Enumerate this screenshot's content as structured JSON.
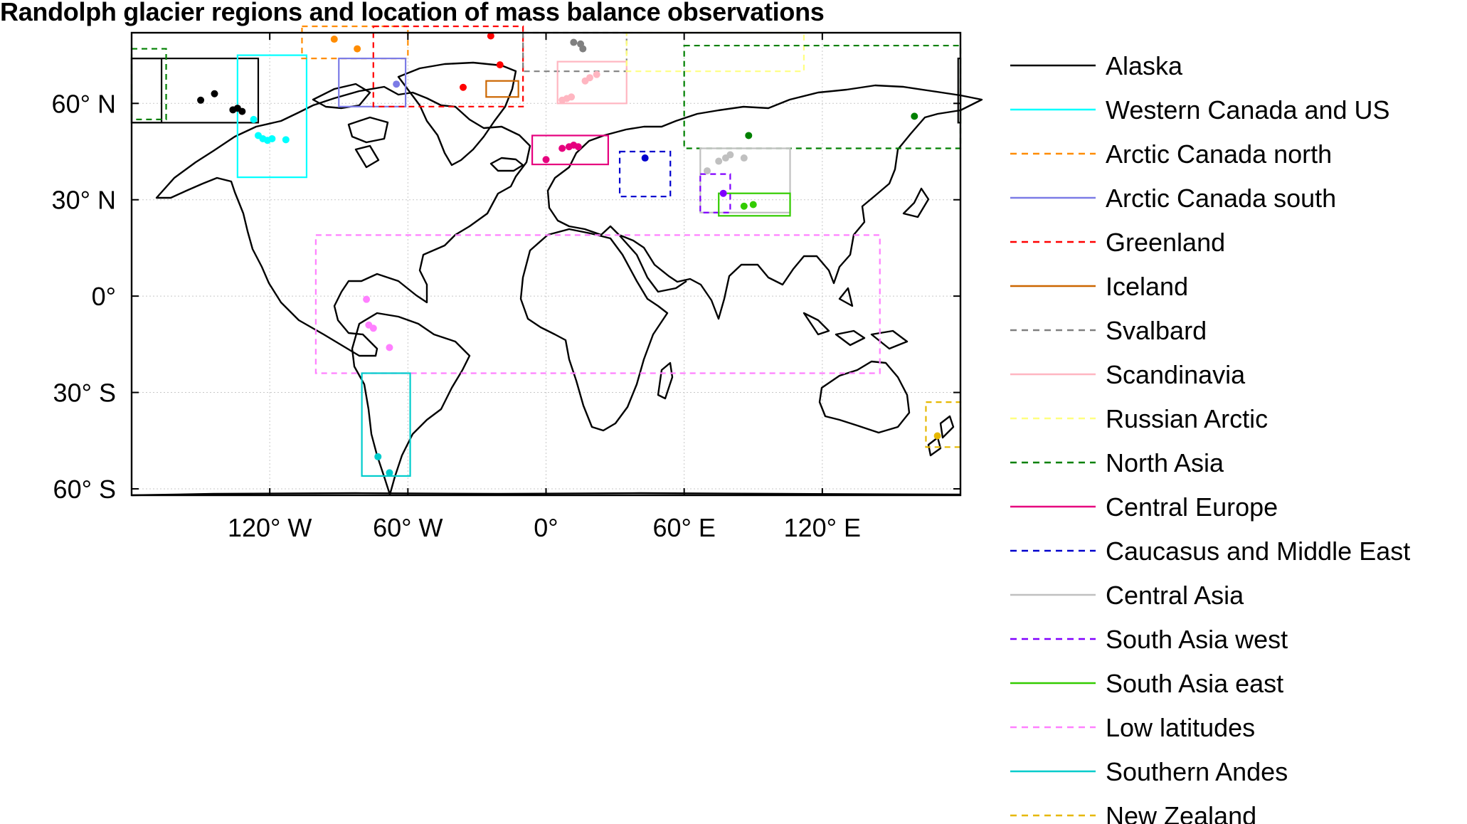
{
  "title": "Randolph glacier regions and location of mass balance observations",
  "map": {
    "projection": "equirectangular",
    "lon_range": [
      -180,
      180
    ],
    "lat_range": [
      -62,
      82
    ],
    "grid": true,
    "x_ticks": [
      {
        "lon": -120,
        "label": "120° W"
      },
      {
        "lon": -60,
        "label": "60° W"
      },
      {
        "lon": 0,
        "label": "0°"
      },
      {
        "lon": 60,
        "label": "60° E"
      },
      {
        "lon": 120,
        "label": "120° E"
      }
    ],
    "y_ticks": [
      {
        "lat": 60,
        "label": "60° N"
      },
      {
        "lat": 30,
        "label": "30° N"
      },
      {
        "lat": 0,
        "label": "0°"
      },
      {
        "lat": -30,
        "label": "30° S"
      },
      {
        "lat": -60,
        "label": "60° S"
      }
    ]
  },
  "regions": [
    {
      "name": "Alaska",
      "color": "#000000",
      "dashed": false,
      "boxes": [
        [
          -180,
          -167,
          54,
          74
        ],
        [
          -180,
          -125,
          54,
          74
        ],
        [
          179,
          180,
          54,
          74
        ]
      ]
    },
    {
      "name": "Western Canada and US",
      "color": "#00FFFF",
      "dashed": false,
      "boxes": [
        [
          -134,
          -104,
          37,
          75
        ]
      ]
    },
    {
      "name": "Arctic Canada north",
      "color": "#FF8C00",
      "dashed": true,
      "boxes": [
        [
          -106,
          -60,
          74,
          84
        ]
      ]
    },
    {
      "name": "Arctic Canada south",
      "color": "#7B7BE6",
      "dashed": false,
      "boxes": [
        [
          -90,
          -61,
          59,
          74
        ]
      ]
    },
    {
      "name": "Greenland",
      "color": "#FF0000",
      "dashed": true,
      "boxes": [
        [
          -75,
          -10,
          59,
          84
        ]
      ]
    },
    {
      "name": "Iceland",
      "color": "#CC6600",
      "dashed": false,
      "boxes": [
        [
          -26,
          -12,
          62,
          67
        ]
      ]
    },
    {
      "name": "Svalbard",
      "color": "#808080",
      "dashed": true,
      "boxes": [
        [
          -10,
          35,
          70,
          82
        ]
      ]
    },
    {
      "name": "Scandinavia",
      "color": "#FFB6C1",
      "dashed": false,
      "boxes": [
        [
          5,
          35,
          60,
          73
        ]
      ]
    },
    {
      "name": "Russian Arctic",
      "color": "#FFFF80",
      "dashed": true,
      "boxes": [
        [
          35,
          112,
          70,
          82
        ]
      ]
    },
    {
      "name": "North Asia",
      "color": "#008000",
      "dashed": true,
      "boxes": [
        [
          60,
          180,
          46,
          78
        ],
        [
          -180,
          -165,
          55,
          77
        ]
      ]
    },
    {
      "name": "Central Europe",
      "color": "#E6007E",
      "dashed": false,
      "boxes": [
        [
          -6,
          27,
          41,
          50
        ]
      ]
    },
    {
      "name": "Caucasus and Middle East",
      "color": "#0000CD",
      "dashed": true,
      "boxes": [
        [
          32,
          54,
          31,
          45
        ]
      ]
    },
    {
      "name": "Central Asia",
      "color": "#C0C0C0",
      "dashed": false,
      "boxes": [
        [
          67,
          106,
          26,
          46
        ]
      ]
    },
    {
      "name": "South Asia west",
      "color": "#8000FF",
      "dashed": true,
      "boxes": [
        [
          67,
          80,
          26,
          38
        ]
      ]
    },
    {
      "name": "South Asia east",
      "color": "#33CC00",
      "dashed": false,
      "boxes": [
        [
          75,
          106,
          25,
          32
        ]
      ]
    },
    {
      "name": "Low latitudes",
      "color": "#FF80FF",
      "dashed": true,
      "boxes": [
        [
          -100,
          145,
          -24,
          19
        ]
      ]
    },
    {
      "name": "Southern Andes",
      "color": "#00CCCC",
      "dashed": false,
      "boxes": [
        [
          -80,
          -59,
          -56,
          -24
        ]
      ]
    },
    {
      "name": "New Zealand",
      "color": "#E6B800",
      "dashed": true,
      "boxes": [
        [
          165,
          180,
          -47,
          -33
        ]
      ]
    }
  ],
  "observations": [
    {
      "region": "Alaska",
      "color": "#000000",
      "points": [
        [
          -150,
          61
        ],
        [
          -144,
          63
        ],
        [
          -136,
          58
        ],
        [
          -134,
          58.5
        ],
        [
          -132,
          57.5
        ]
      ]
    },
    {
      "region": "Western Canada and US",
      "color": "#00FFFF",
      "points": [
        [
          -125,
          50
        ],
        [
          -123,
          49
        ],
        [
          -121,
          48.5
        ],
        [
          -119,
          49
        ],
        [
          -113,
          48.7
        ],
        [
          -127,
          55
        ]
      ]
    },
    {
      "region": "Arctic Canada north",
      "color": "#FF8C00",
      "points": [
        [
          -92,
          80
        ],
        [
          -82,
          77
        ]
      ]
    },
    {
      "region": "Arctic Canada south",
      "color": "#7B7BE6",
      "points": [
        [
          -65,
          66
        ]
      ]
    },
    {
      "region": "Greenland",
      "color": "#FF0000",
      "points": [
        [
          -36,
          65
        ],
        [
          -20,
          72
        ],
        [
          -24,
          81
        ]
      ]
    },
    {
      "region": "Svalbard",
      "color": "#808080",
      "points": [
        [
          12,
          79
        ],
        [
          15,
          78.5
        ],
        [
          16,
          77
        ]
      ]
    },
    {
      "region": "Scandinavia",
      "color": "#FFB6C1",
      "points": [
        [
          7,
          61
        ],
        [
          9,
          61.5
        ],
        [
          11,
          62
        ],
        [
          17,
          67
        ],
        [
          19,
          68
        ],
        [
          22,
          69
        ]
      ]
    },
    {
      "region": "North Asia",
      "color": "#008000",
      "points": [
        [
          88,
          50
        ],
        [
          160,
          56
        ]
      ]
    },
    {
      "region": "Central Europe",
      "color": "#E6007E",
      "points": [
        [
          0,
          42.5
        ],
        [
          7,
          46
        ],
        [
          10,
          46.5
        ],
        [
          12,
          47
        ],
        [
          14,
          46.5
        ]
      ]
    },
    {
      "region": "Caucasus and Middle East",
      "color": "#0000CD",
      "points": [
        [
          43,
          43
        ]
      ]
    },
    {
      "region": "Central Asia",
      "color": "#C0C0C0",
      "points": [
        [
          70,
          39
        ],
        [
          75,
          42
        ],
        [
          78,
          43
        ],
        [
          80,
          44
        ],
        [
          86,
          43
        ]
      ]
    },
    {
      "region": "South Asia west",
      "color": "#8000FF",
      "points": [
        [
          77,
          32
        ]
      ]
    },
    {
      "region": "South Asia east",
      "color": "#33CC00",
      "points": [
        [
          86,
          28
        ],
        [
          90,
          28.5
        ]
      ]
    },
    {
      "region": "Low latitudes",
      "color": "#FF80FF",
      "points": [
        [
          -77,
          -9
        ],
        [
          -75,
          -10
        ],
        [
          -78,
          -1
        ],
        [
          -68,
          -16
        ]
      ]
    },
    {
      "region": "Southern Andes",
      "color": "#00CCCC",
      "points": [
        [
          -73,
          -50
        ],
        [
          -68,
          -55
        ]
      ]
    },
    {
      "region": "New Zealand",
      "color": "#E6B800",
      "points": [
        [
          170,
          -43.5
        ]
      ]
    }
  ]
}
